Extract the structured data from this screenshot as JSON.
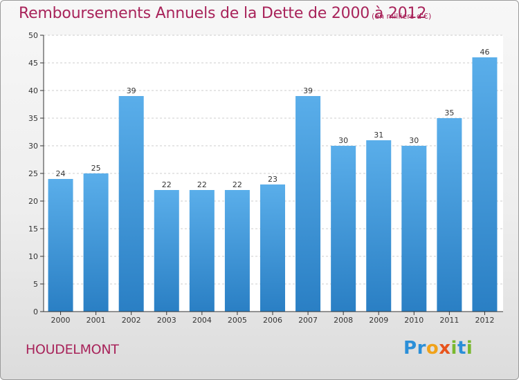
{
  "title": "Remboursements Annuels de la Dette de 2000 à 2012",
  "unit_note": "(en milliers d'€)",
  "commune": "HOUDELMONT",
  "logo": {
    "text": "Proxiti",
    "letters": [
      {
        "ch": "P",
        "color": "#2b8fd8"
      },
      {
        "ch": "r",
        "color": "#2b8fd8"
      },
      {
        "ch": "o",
        "color": "#f0a21a"
      },
      {
        "ch": "x",
        "color": "#e8541c"
      },
      {
        "ch": "i",
        "color": "#79b82e"
      },
      {
        "ch": "t",
        "color": "#2b8fd8"
      },
      {
        "ch": "i",
        "color": "#79b82e"
      }
    ]
  },
  "colors": {
    "bar_top": "#5aaeea",
    "bar_bottom": "#2a7fc4",
    "title": "#a8235a",
    "grid": "#cccccc"
  },
  "chart_data": {
    "type": "bar",
    "title": "Remboursements Annuels de la Dette de 2000 à 2012",
    "categories": [
      "2000",
      "2001",
      "2002",
      "2003",
      "2004",
      "2005",
      "2006",
      "2007",
      "2008",
      "2009",
      "2010",
      "2011",
      "2012"
    ],
    "values": [
      24,
      25,
      39,
      22,
      22,
      22,
      23,
      39,
      30,
      31,
      30,
      35,
      46
    ],
    "ylim": [
      0,
      50
    ],
    "yticks": [
      0,
      5,
      10,
      15,
      20,
      25,
      30,
      35,
      40,
      45,
      50
    ],
    "grid": true,
    "data_labels": true
  }
}
